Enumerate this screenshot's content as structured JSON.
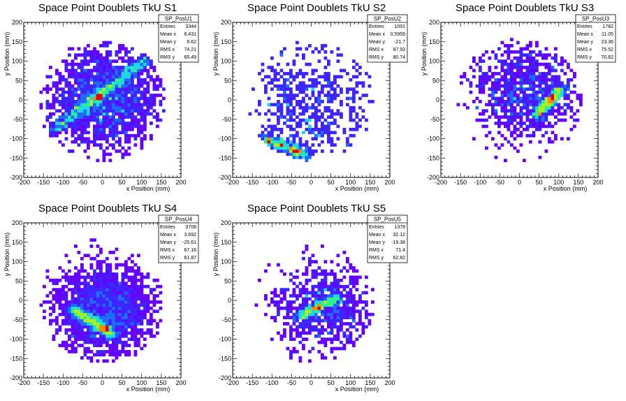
{
  "chart_data": [
    {
      "type": "heatmap",
      "title": "Space Point Doublets TkU S1",
      "xlabel": "x Position (mm)",
      "ylabel": "y Position (mm)",
      "xlim": [
        -200,
        200
      ],
      "ylim": [
        -200,
        200
      ],
      "ticks": [
        "-200",
        "-150",
        "-100",
        "-50",
        "0",
        "50",
        "100",
        "150",
        "200"
      ],
      "stats": {
        "name": "SP_PosU1",
        "rows": [
          [
            "Entries",
            "3344"
          ],
          [
            "Mean x",
            "6.431"
          ],
          [
            "Mean y",
            "6.62"
          ],
          [
            "RMS x",
            "74.21"
          ],
          [
            "RMS y",
            "65.49"
          ]
        ]
      },
      "mean": [
        6.431,
        6.62
      ],
      "rms": [
        74.21,
        65.49
      ],
      "band": {
        "from": [
          -130,
          -80
        ],
        "to": [
          120,
          110
        ],
        "peak": [
          -10,
          5
        ]
      },
      "entries": 3344
    },
    {
      "type": "heatmap",
      "title": "Space Point Doublets TkU S2",
      "xlabel": "x Position (mm)",
      "ylabel": "y Position (mm)",
      "xlim": [
        -200,
        200
      ],
      "ylim": [
        -200,
        200
      ],
      "ticks": [
        "-200",
        "-150",
        "-100",
        "-50",
        "0",
        "50",
        "100",
        "150",
        "200"
      ],
      "stats": {
        "name": "SP_PosU2",
        "rows": [
          [
            "Entries",
            "1091"
          ],
          [
            "Mean x",
            "0.5959"
          ],
          [
            "Mean y",
            "-21.7"
          ],
          [
            "RMS x",
            "87.93"
          ],
          [
            "RMS y",
            "80.74"
          ]
        ]
      },
      "mean": [
        0.5959,
        -21.7
      ],
      "rms": [
        87.93,
        80.74
      ],
      "band": {
        "from": [
          -120,
          -100
        ],
        "to": [
          -10,
          -140
        ],
        "peak": [
          -40,
          -130
        ]
      },
      "entries": 1091
    },
    {
      "type": "heatmap",
      "title": "Space Point Doublets TkU S3",
      "xlabel": "x Position (mm)",
      "ylabel": "y Position (mm)",
      "xlim": [
        -200,
        200
      ],
      "ylim": [
        -200,
        200
      ],
      "ticks": [
        "-200",
        "-150",
        "-100",
        "-50",
        "0",
        "50",
        "100",
        "150",
        "200"
      ],
      "stats": {
        "name": "SP_PosU3",
        "rows": [
          [
            "Entries",
            "1782"
          ],
          [
            "Mean x",
            "11.05"
          ],
          [
            "Mean y",
            "23.36"
          ],
          [
            "RMS x",
            "75.52"
          ],
          [
            "RMS y",
            "70.82"
          ]
        ]
      },
      "mean": [
        11.05,
        23.36
      ],
      "rms": [
        75.52,
        70.82
      ],
      "band": {
        "from": [
          40,
          -40
        ],
        "to": [
          110,
          30
        ],
        "peak": [
          80,
          0
        ]
      },
      "entries": 1782
    },
    {
      "type": "heatmap",
      "title": "Space Point Doublets TkU S4",
      "xlabel": "x Position (mm)",
      "ylabel": "y Position (mm)",
      "xlim": [
        -200,
        200
      ],
      "ylim": [
        -200,
        200
      ],
      "ticks": [
        "-200",
        "-150",
        "-100",
        "-50",
        "0",
        "50",
        "100",
        "150",
        "200"
      ],
      "stats": {
        "name": "SP_PosU4",
        "rows": [
          [
            "Entries",
            "3708"
          ],
          [
            "Mean x",
            "3.692"
          ],
          [
            "Mean y",
            "-25.61"
          ],
          [
            "RMS x",
            "67.16"
          ],
          [
            "RMS y",
            "61.87"
          ]
        ]
      },
      "mean": [
        3.692,
        -25.61
      ],
      "rms": [
        67.16,
        61.87
      ],
      "band": {
        "from": [
          -80,
          -20
        ],
        "to": [
          30,
          -90
        ],
        "peak": [
          10,
          -70
        ]
      },
      "entries": 3708
    },
    {
      "type": "heatmap",
      "title": "Space Point Doublets TkU S5",
      "xlabel": "x Position (mm)",
      "ylabel": "y Position (mm)",
      "xlim": [
        -200,
        200
      ],
      "ylim": [
        -200,
        200
      ],
      "ticks": [
        "-200",
        "-150",
        "-100",
        "-50",
        "0",
        "50",
        "100",
        "150",
        "200"
      ],
      "stats": {
        "name": "SP_PosU5",
        "rows": [
          [
            "Entries",
            "1378"
          ],
          [
            "Mean x",
            "32.12"
          ],
          [
            "Mean y",
            "-19.38"
          ],
          [
            "RMS x",
            "71.4"
          ],
          [
            "RMS y",
            "62.82"
          ]
        ]
      },
      "mean": [
        32.12,
        -19.38
      ],
      "rms": [
        71.4,
        62.82
      ],
      "band": {
        "from": [
          -30,
          -40
        ],
        "to": [
          70,
          10
        ],
        "peak": [
          20,
          -20
        ]
      },
      "entries": 1378
    }
  ],
  "palette": [
    "#6600ff",
    "#3e24ff",
    "#1e6cff",
    "#1ed8e8",
    "#2ef08c",
    "#aaf01e",
    "#ff8a00",
    "#e60000"
  ]
}
